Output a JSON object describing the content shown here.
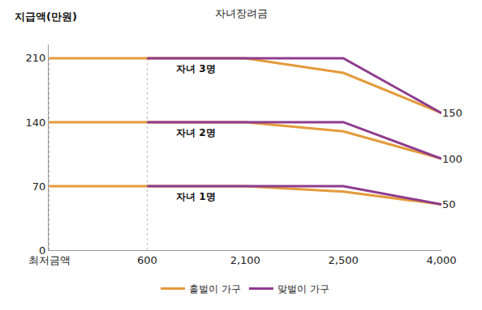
{
  "chart_data": {
    "type": "line",
    "title": "자녀장려금",
    "y_label": "지급액(만원)",
    "categories": [
      "최저금액",
      "600",
      "2,100",
      "2,500",
      "4,000"
    ],
    "labels": [
      "자녀 1명",
      "자녀 2명",
      "자녀 3명"
    ],
    "series": [
      {
        "name": "홑벌이 가구",
        "color": "#E39B3B",
        "values": [
          [
            70,
            70,
            70,
            64,
            50
          ],
          [
            140,
            140,
            140,
            130,
            100
          ],
          [
            210,
            210,
            210,
            194,
            150
          ]
        ]
      },
      {
        "name": "맞벌이 가구",
        "color": "#8E3C8E",
        "values": [
          [
            null,
            70,
            70,
            70,
            50
          ],
          [
            null,
            140,
            140,
            140,
            100
          ],
          [
            null,
            210,
            210,
            210,
            150
          ]
        ]
      }
    ],
    "ylim": [
      0,
      225
    ],
    "yticks": [
      0,
      70,
      140,
      210
    ],
    "y2lim": [
      0,
      225
    ],
    "y2ticks": [
      50,
      100,
      150
    ],
    "grid": false,
    "legend": "bottom"
  }
}
